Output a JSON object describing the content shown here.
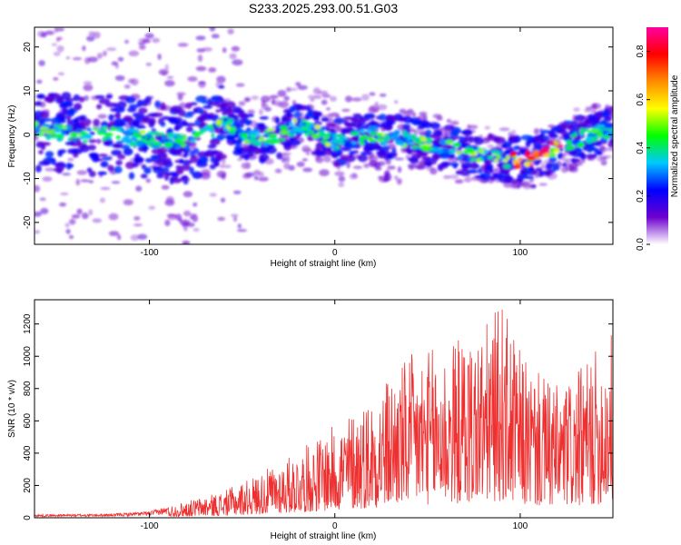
{
  "chart_data": [
    {
      "type": "heatmap",
      "title": "S233.2025.293.00.51.G03",
      "xlabel": "Height of straight line (km)",
      "ylabel": "Frequency (Hz)",
      "xlim": [
        -162,
        150
      ],
      "ylim": [
        -25,
        24.5
      ],
      "xticks": [
        -100,
        0,
        100
      ],
      "xtick_labels": [
        "-100",
        "0",
        "100"
      ],
      "yticks": [
        -20,
        -10,
        0,
        10,
        20
      ],
      "ytick_labels": [
        "-20",
        "-10",
        "0",
        "10",
        "20"
      ],
      "ridge": {
        "x": [
          -160,
          -140,
          -120,
          -100,
          -80,
          -70,
          -60,
          -50,
          -40,
          -30,
          -20,
          -10,
          0,
          10,
          20,
          40,
          60,
          80,
          100,
          110,
          120,
          130,
          140,
          150
        ],
        "y": [
          1,
          0,
          0,
          -1,
          -2,
          0,
          3,
          0,
          -1,
          0,
          2,
          1,
          -2,
          -1,
          0,
          -1,
          -3,
          -5,
          -6,
          -5,
          -3,
          -1,
          0,
          1
        ]
      },
      "colorbar": {
        "label": "Normalized spectral amplitude",
        "range": [
          0,
          0.9
        ],
        "ticks": [
          0.0,
          0.2,
          0.4,
          0.6,
          0.8
        ],
        "tick_labels": [
          "0.0",
          "0.2",
          "0.4",
          "0.6",
          "0.8"
        ],
        "colors": [
          "#ffffff",
          "#6d00cf",
          "#0000ff",
          "#00c8ff",
          "#00ff00",
          "#ffff00",
          "#ff8c00",
          "#ff0000",
          "#ff00a0"
        ]
      }
    },
    {
      "type": "line",
      "xlabel": "Height of straight line (km)",
      "ylabel": "SNR (10 * v/v)",
      "xlim": [
        -162,
        150
      ],
      "ylim": [
        0,
        1350
      ],
      "xticks": [
        -100,
        0,
        100
      ],
      "xtick_labels": [
        "-100",
        "0",
        "100"
      ],
      "yticks": [
        0,
        200,
        400,
        600,
        800,
        1000,
        1200
      ],
      "ytick_labels": [
        "0",
        "200",
        "400",
        "600",
        "800",
        "1000",
        "1200"
      ],
      "line_color": "#ee3030",
      "envelope": {
        "x": [
          -162,
          -120,
          -100,
          -80,
          -60,
          -40,
          -20,
          0,
          20,
          40,
          60,
          80,
          90,
          100,
          110,
          120,
          130,
          140,
          150
        ],
        "y": [
          20,
          25,
          40,
          100,
          160,
          270,
          400,
          560,
          750,
          980,
          1050,
          1150,
          1300,
          1000,
          870,
          800,
          860,
          1000,
          1150
        ]
      }
    }
  ]
}
